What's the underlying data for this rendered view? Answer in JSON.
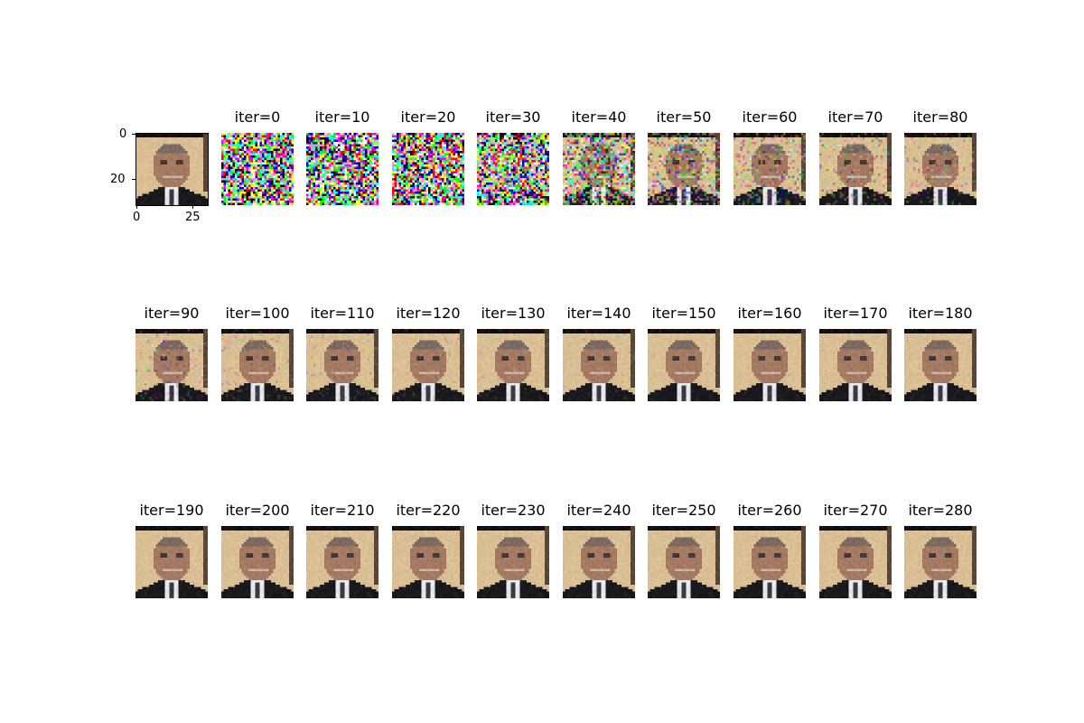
{
  "figure": {
    "reference_panel": {
      "yticks": [
        "0",
        "20"
      ],
      "xticks": [
        "0",
        "25"
      ]
    },
    "panels": [
      {
        "title": "iter=0",
        "noise": 1.0
      },
      {
        "title": "iter=10",
        "noise": 1.0
      },
      {
        "title": "iter=20",
        "noise": 0.98
      },
      {
        "title": "iter=30",
        "noise": 0.85
      },
      {
        "title": "iter=40",
        "noise": 0.6
      },
      {
        "title": "iter=50",
        "noise": 0.42
      },
      {
        "title": "iter=60",
        "noise": 0.32
      },
      {
        "title": "iter=70",
        "noise": 0.26
      },
      {
        "title": "iter=80",
        "noise": 0.22
      },
      {
        "title": "iter=90",
        "noise": 0.18
      },
      {
        "title": "iter=100",
        "noise": 0.15
      },
      {
        "title": "iter=110",
        "noise": 0.13
      },
      {
        "title": "iter=120",
        "noise": 0.11
      },
      {
        "title": "iter=130",
        "noise": 0.1
      },
      {
        "title": "iter=140",
        "noise": 0.09
      },
      {
        "title": "iter=150",
        "noise": 0.08
      },
      {
        "title": "iter=160",
        "noise": 0.07
      },
      {
        "title": "iter=170",
        "noise": 0.06
      },
      {
        "title": "iter=180",
        "noise": 0.05
      },
      {
        "title": "iter=190",
        "noise": 0.04
      },
      {
        "title": "iter=200",
        "noise": 0.035
      },
      {
        "title": "iter=210",
        "noise": 0.03
      },
      {
        "title": "iter=220",
        "noise": 0.028
      },
      {
        "title": "iter=230",
        "noise": 0.025
      },
      {
        "title": "iter=240",
        "noise": 0.022
      },
      {
        "title": "iter=250",
        "noise": 0.02
      },
      {
        "title": "iter=260",
        "noise": 0.018
      },
      {
        "title": "iter=270",
        "noise": 0.016
      },
      {
        "title": "iter=280",
        "noise": 0.015
      }
    ],
    "colors": {
      "background_beige": "#d9bf93",
      "skin": "#a57a62",
      "hair": "#7a6a62",
      "suit": "#1a1a1e",
      "shirt": "#e8e8ea",
      "tie": "#3a3a44",
      "frame": "#000000"
    }
  }
}
